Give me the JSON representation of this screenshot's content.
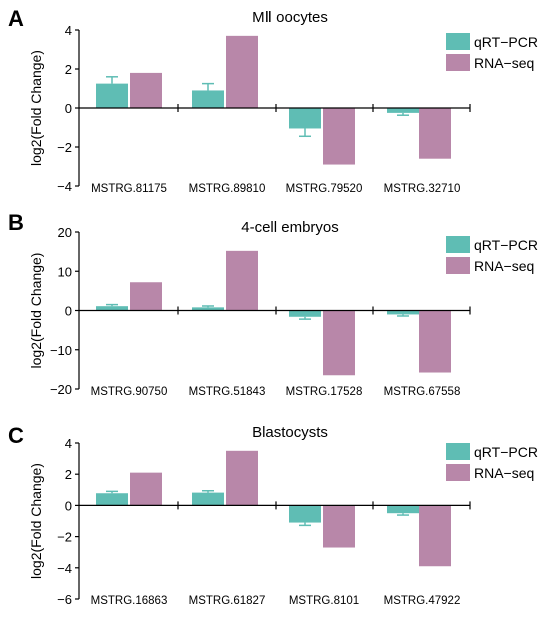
{
  "colors": {
    "qrt": "#5fbdb4",
    "rna": "#b887a9"
  },
  "legend": [
    "qRT−PCR",
    "RNA−seq"
  ],
  "chart_data": [
    {
      "type": "bar",
      "panel": "A",
      "title": "MⅡ oocytes",
      "ylabel": "log2(Fold Change)",
      "ylim": [
        -4,
        4
      ],
      "yticks": [
        4,
        2,
        0,
        -2,
        -4
      ],
      "categories": [
        "MSTRG.81175",
        "MSTRG.89810",
        "MSTRG.79520",
        "MSTRG.32710"
      ],
      "series": [
        {
          "name": "qRT−PCR",
          "values": [
            1.25,
            0.9,
            -1.05,
            -0.25
          ],
          "errors": [
            0.35,
            0.35,
            0.4,
            0.12
          ]
        },
        {
          "name": "RNA−seq",
          "values": [
            1.8,
            3.7,
            -2.9,
            -2.6
          ]
        }
      ]
    },
    {
      "type": "bar",
      "panel": "B",
      "title": "4-cell embryos",
      "ylabel": "log2(Fold Change)",
      "ylim": [
        -20,
        20
      ],
      "yticks": [
        20,
        10,
        0,
        -10,
        -20
      ],
      "categories": [
        "MSTRG.90750",
        "MSTRG.51843",
        "MSTRG.17528",
        "MSTRG.67558"
      ],
      "series": [
        {
          "name": "qRT−PCR",
          "values": [
            1.1,
            0.8,
            -1.6,
            -1.0
          ],
          "errors": [
            0.4,
            0.35,
            0.6,
            0.4
          ]
        },
        {
          "name": "RNA−seq",
          "values": [
            7.2,
            15.2,
            -16.5,
            -15.8
          ]
        }
      ]
    },
    {
      "type": "bar",
      "panel": "C",
      "title": "Blastocysts",
      "ylabel": "log2(Fold Change)",
      "ylim": [
        -6,
        4
      ],
      "yticks": [
        4,
        2,
        0,
        -2,
        -4,
        -6
      ],
      "categories": [
        "MSTRG.16863",
        "MSTRG.61827",
        "MSTRG.8101",
        "MSTRG.47922"
      ],
      "series": [
        {
          "name": "qRT−PCR",
          "values": [
            0.78,
            0.82,
            -1.1,
            -0.5
          ],
          "errors": [
            0.12,
            0.12,
            0.18,
            0.12
          ]
        },
        {
          "name": "RNA−seq",
          "values": [
            2.1,
            3.5,
            -2.7,
            -3.9
          ]
        }
      ]
    }
  ]
}
